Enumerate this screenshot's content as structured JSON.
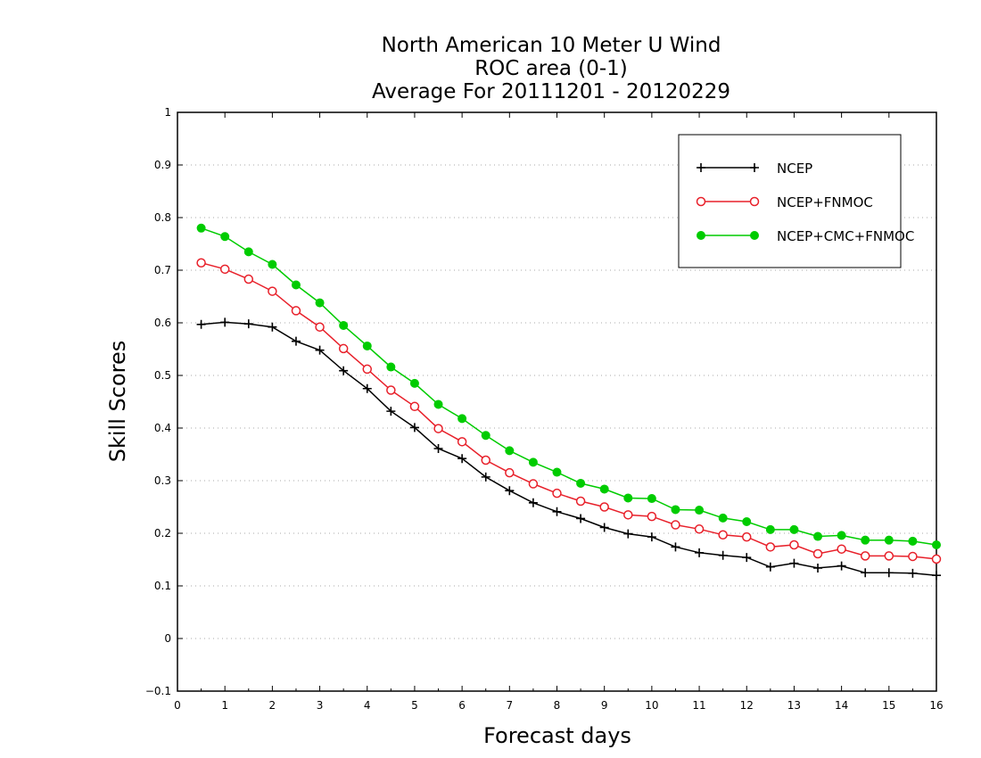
{
  "chart_data": {
    "type": "line",
    "title": [
      "North American 10 Meter U Wind",
      "ROC area (0-1)",
      "Average For 20111201 - 20120229"
    ],
    "xlabel": "Forecast days",
    "ylabel": "Skill Scores",
    "xlim": [
      0,
      16
    ],
    "ylim": [
      -0.1,
      1
    ],
    "xticks": [
      "0",
      "1",
      "2",
      "3",
      "4",
      "5",
      "6",
      "7",
      "8",
      "9",
      "10",
      "11",
      "12",
      "13",
      "14",
      "15",
      "16"
    ],
    "yticks": [
      "−0.1",
      "0",
      "0.1",
      "0.2",
      "0.3",
      "0.4",
      "0.5",
      "0.6",
      "0.7",
      "0.8",
      "0.9",
      "1"
    ],
    "grid": "horizontal dotted",
    "legend_position": "top-right",
    "x": [
      0.5,
      1,
      1.5,
      2,
      2.5,
      3,
      3.5,
      4,
      4.5,
      5,
      5.5,
      6,
      6.5,
      7,
      7.5,
      8,
      8.5,
      9,
      9.5,
      10,
      10.5,
      11,
      11.5,
      12,
      12.5,
      13,
      13.5,
      14,
      14.5,
      15,
      15.5,
      16
    ],
    "series": [
      {
        "name": "NCEP",
        "color": "#000000",
        "marker": "plus",
        "values": [
          0.597,
          0.601,
          0.598,
          0.592,
          0.565,
          0.548,
          0.509,
          0.475,
          0.432,
          0.401,
          0.361,
          0.342,
          0.307,
          0.281,
          0.258,
          0.241,
          0.228,
          0.211,
          0.199,
          0.193,
          0.174,
          0.163,
          0.158,
          0.154,
          0.136,
          0.143,
          0.134,
          0.138,
          0.125,
          0.125,
          0.124,
          0.12
        ]
      },
      {
        "name": "NCEP+FNMOC",
        "color": "#e8202a",
        "marker": "open-circle",
        "values": [
          0.714,
          0.702,
          0.683,
          0.66,
          0.623,
          0.592,
          0.551,
          0.512,
          0.472,
          0.441,
          0.399,
          0.374,
          0.339,
          0.315,
          0.294,
          0.276,
          0.261,
          0.25,
          0.235,
          0.232,
          0.216,
          0.208,
          0.197,
          0.193,
          0.174,
          0.178,
          0.161,
          0.17,
          0.157,
          0.157,
          0.156,
          0.151
        ]
      },
      {
        "name": "NCEP+CMC+FNMOC",
        "color": "#00cc00",
        "marker": "filled-circle",
        "values": [
          0.78,
          0.764,
          0.735,
          0.711,
          0.672,
          0.638,
          0.595,
          0.556,
          0.516,
          0.485,
          0.445,
          0.418,
          0.386,
          0.357,
          0.335,
          0.316,
          0.295,
          0.284,
          0.267,
          0.266,
          0.245,
          0.244,
          0.229,
          0.222,
          0.207,
          0.207,
          0.194,
          0.196,
          0.187,
          0.187,
          0.185,
          0.178
        ]
      }
    ]
  }
}
